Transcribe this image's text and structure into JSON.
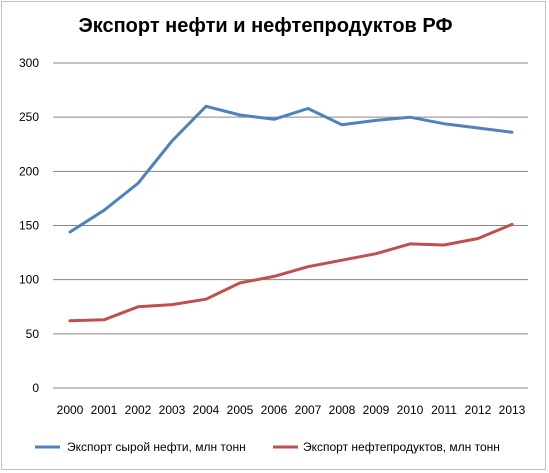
{
  "chart_data": {
    "type": "line",
    "title": "Экспорт нефти и нефтепродуктов РФ",
    "xlabel": "",
    "ylabel": "",
    "categories": [
      "2000",
      "2001",
      "2002",
      "2003",
      "2004",
      "2005",
      "2006",
      "2007",
      "2008",
      "2009",
      "2010",
      "2011",
      "2012",
      "2013"
    ],
    "ylim": [
      0,
      300
    ],
    "yticks": [
      "0",
      "50",
      "100",
      "150",
      "200",
      "250",
      "300"
    ],
    "grid": true,
    "legend_position": "bottom",
    "series": [
      {
        "name": "Экспорт сырой нефти, млн тонн",
        "color": "#4f81bd",
        "values": [
          144,
          164,
          189,
          228,
          260,
          252,
          248,
          258,
          243,
          247,
          250,
          244,
          240,
          236
        ]
      },
      {
        "name": "Экспорт нефтепродуктов, млн тонн",
        "color": "#c0504d",
        "values": [
          62,
          63,
          75,
          77,
          82,
          97,
          103,
          112,
          118,
          124,
          133,
          132,
          138,
          151
        ]
      }
    ]
  }
}
